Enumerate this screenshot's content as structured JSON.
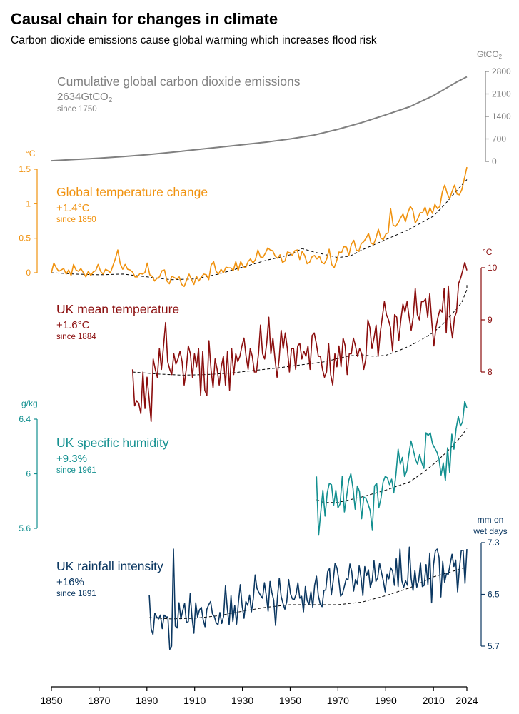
{
  "title": "Causal chain for changes in climate",
  "subtitle": "Carbon dioxide emissions cause global warming which increases flood risk",
  "chart_data": [
    {
      "type": "line",
      "id": "co2",
      "title": "Cumulative global carbon dioxide emissions",
      "value_label": "2634GtCO2",
      "since_label": "since 1750",
      "unit_label": "GtCO2",
      "color": "#808080",
      "ylim": [
        0,
        2800
      ],
      "yticks": [
        0,
        700,
        1400,
        2100,
        2800
      ],
      "axis_side": "right",
      "x": [
        1850,
        1860,
        1870,
        1880,
        1890,
        1900,
        1910,
        1920,
        1930,
        1940,
        1950,
        1960,
        1970,
        1980,
        1990,
        2000,
        2010,
        2020,
        2024
      ],
      "values": [
        20,
        60,
        100,
        150,
        210,
        280,
        360,
        440,
        520,
        600,
        700,
        820,
        1000,
        1210,
        1450,
        1700,
        2050,
        2480,
        2634
      ],
      "has_trend": false
    },
    {
      "type": "line",
      "id": "global_temp",
      "title": "Global temperature change",
      "value_label": "+1.4°C",
      "since_label": "since 1850",
      "unit_label": "°C",
      "color": "#F0920F",
      "ylim": [
        0,
        1.5
      ],
      "yticks": [
        0,
        0.5,
        1,
        1.5
      ],
      "ytick_labels": [
        "0",
        "0.5",
        "1",
        "1.5"
      ],
      "axis_side": "left",
      "start": 1850,
      "values": [
        0.0,
        0.14,
        0.07,
        0.02,
        0.04,
        0.06,
        -0.02,
        0.04,
        -0.04,
        0.12,
        0.04,
        0.02,
        0.06,
        0.0,
        -0.06,
        0.02,
        -0.04,
        0.01,
        0.03,
        0.12,
        0.02,
        -0.02,
        0.05,
        0.03,
        0.0,
        0.1,
        0.2,
        0.33,
        0.13,
        0.05,
        0.12,
        0.05,
        0.04,
        0.01,
        -0.06,
        -0.06,
        -0.01,
        -0.02,
        0.0,
        0.14,
        -0.03,
        -0.05,
        -0.12,
        -0.08,
        -0.06,
        0.03,
        0.04,
        -0.12,
        -0.16,
        -0.05,
        -0.07,
        -0.09,
        -0.06,
        -0.17,
        -0.2,
        -0.11,
        -0.02,
        -0.1,
        -0.17,
        -0.05,
        -0.12,
        -0.06,
        -0.02,
        -0.03,
        -0.1,
        0.11,
        0.16,
        0.02,
        -0.02,
        0.05,
        0.0,
        0.08,
        0.07,
        0.07,
        0.03,
        0.16,
        0.03,
        0.16,
        0.09,
        0.07,
        0.16,
        0.2,
        0.14,
        0.19,
        0.33,
        0.23,
        0.22,
        0.28,
        0.36,
        0.33,
        0.32,
        0.24,
        0.21,
        0.26,
        0.15,
        0.17,
        0.3,
        0.29,
        0.25,
        0.32,
        0.33,
        0.19,
        0.31,
        0.25,
        0.13,
        0.15,
        0.23,
        0.25,
        0.2,
        0.24,
        0.15,
        0.13,
        0.2,
        0.34,
        0.12,
        0.07,
        0.17,
        0.3,
        0.29,
        0.38,
        0.37,
        0.25,
        0.41,
        0.47,
        0.33,
        0.31,
        0.42,
        0.45,
        0.5,
        0.57,
        0.43,
        0.41,
        0.5,
        0.63,
        0.5,
        0.48,
        0.56,
        0.58,
        0.93,
        0.69,
        0.67,
        0.72,
        0.79,
        0.85,
        0.74,
        0.87,
        0.96,
        0.91,
        0.72,
        0.78,
        0.87,
        0.87,
        0.95,
        0.83,
        0.94,
        0.86,
        0.99,
        0.93,
        0.96,
        1.17,
        1.27,
        1.15,
        1.07,
        1.18,
        1.27,
        1.14,
        1.13,
        1.21,
        1.37,
        1.53
      ],
      "trend": [
        0.0,
        -0.02,
        -0.03,
        -0.02,
        -0.06,
        -0.1,
        -0.09,
        -0.02,
        0.08,
        0.18,
        0.26,
        0.35,
        0.3,
        0.26,
        0.22,
        0.24,
        0.33,
        0.48,
        0.63,
        0.82,
        1.0,
        1.2,
        1.35
      ],
      "trend_x": [
        1850,
        1860,
        1870,
        1880,
        1890,
        1900,
        1910,
        1920,
        1930,
        1940,
        1950,
        1955,
        1960,
        1965,
        1970,
        1975,
        1980,
        1990,
        2000,
        2010,
        2015,
        2020,
        2024
      ]
    },
    {
      "type": "line",
      "id": "uk_temp",
      "title": "UK mean temperature",
      "value_label": "+1.6°C",
      "since_label": "since 1884",
      "unit_label": "°C",
      "color": "#8B0E0E",
      "ylim": [
        8,
        10
      ],
      "yticks": [
        8,
        9,
        10
      ],
      "axis_side": "right",
      "start": 1884,
      "values": [
        8.05,
        7.35,
        7.45,
        7.4,
        7.2,
        8.0,
        7.3,
        7.9,
        7.5,
        7.05,
        8.25,
        8.05,
        7.9,
        8.45,
        8.05,
        8.5,
        8.95,
        8.2,
        8.05,
        7.95,
        8.35,
        8.15,
        8.25,
        8.4,
        8.2,
        7.75,
        8.05,
        8.5,
        8.35,
        7.9,
        8.35,
        8.1,
        8.45,
        7.55,
        8.4,
        7.65,
        7.55,
        8.6,
        8.05,
        7.7,
        8.25,
        8.05,
        7.75,
        8.1,
        8.3,
        7.75,
        8.4,
        7.65,
        8.45,
        7.95,
        8.35,
        8.2,
        8.3,
        8.5,
        8.65,
        8.3,
        8.05,
        8.45,
        8.3,
        8.0,
        8.0,
        8.35,
        8.9,
        8.35,
        8.25,
        8.55,
        9.05,
        8.35,
        8.65,
        8.25,
        7.9,
        8.25,
        8.8,
        8.45,
        8.75,
        8.45,
        8.0,
        8.45,
        8.45,
        8.05,
        8.5,
        8.55,
        8.25,
        8.4,
        8.3,
        8.5,
        8.05,
        8.7,
        8.75,
        8.55,
        8.3,
        8.3,
        8.05,
        7.9,
        8.0,
        8.55,
        7.95,
        7.75,
        8.35,
        8.1,
        8.5,
        8.1,
        8.65,
        8.5,
        7.95,
        8.35,
        8.35,
        8.65,
        8.5,
        8.3,
        8.45,
        8.35,
        8.05,
        8.25,
        9.0,
        8.85,
        8.45,
        8.65,
        8.9,
        8.3,
        8.75,
        9.05,
        9.35,
        9.1,
        9.0,
        8.85,
        8.4,
        9.1,
        9.05,
        8.6,
        9.0,
        9.3,
        9.15,
        9.35,
        9.05,
        8.8,
        9.05,
        9.6,
        9.1,
        9.0,
        9.35,
        9.35,
        9.4,
        9.05,
        9.5,
        8.95,
        8.5,
        8.85,
        9.05,
        9.2,
        9.15,
        9.6,
        8.75,
        9.65,
        8.95,
        8.65,
        9.05,
        9.15,
        9.7,
        9.8,
        9.95,
        10.1,
        9.95
      ],
      "trend": [
        8.0,
        7.96,
        7.94,
        7.95,
        7.98,
        8.03,
        8.08,
        8.14,
        8.2,
        8.26,
        8.31,
        8.33,
        8.3,
        8.32,
        8.4,
        8.5,
        8.62,
        8.76,
        8.92,
        9.08,
        9.22,
        9.35,
        9.47,
        9.58,
        9.67
      ],
      "trend_x": [
        1884,
        1895,
        1905,
        1915,
        1925,
        1935,
        1945,
        1955,
        1965,
        1970,
        1975,
        1980,
        1985,
        1990,
        1995,
        2000,
        2005,
        2010,
        2014,
        2017,
        2020,
        2022,
        2023,
        2024,
        2024
      ]
    },
    {
      "type": "line",
      "id": "uk_humidity",
      "title": "UK specific humidity",
      "value_label": "+9.3%",
      "since_label": "since 1961",
      "unit_label": "g/kg",
      "color": "#139090",
      "ylim": [
        5.6,
        6.4
      ],
      "yticks": [
        5.6,
        6,
        6.4
      ],
      "ytick_labels": [
        "5.6",
        "6",
        "6.4"
      ],
      "axis_side": "left",
      "start": 1961,
      "values": [
        5.98,
        5.55,
        5.72,
        5.88,
        5.69,
        5.86,
        5.93,
        5.92,
        5.77,
        5.88,
        5.75,
        5.78,
        5.98,
        5.72,
        5.83,
        5.95,
        6.0,
        5.89,
        5.74,
        5.91,
        5.87,
        5.67,
        5.83,
        5.82,
        5.78,
        5.73,
        5.59,
        5.91,
        5.93,
        5.75,
        5.82,
        5.94,
        5.98,
        5.97,
        5.92,
        5.96,
        5.86,
        6.0,
        6.18,
        6.07,
        6.12,
        5.98,
        6.02,
        6.14,
        6.24,
        6.18,
        6.11,
        6.07,
        6.14,
        6.08,
        6.04,
        6.3,
        6.28,
        6.3,
        6.22,
        6.19,
        6.16,
        6.11,
        5.99,
        6.08,
        5.95,
        6.19,
        6.01,
        6.29,
        6.18,
        6.33,
        6.42,
        6.35,
        6.38,
        6.53,
        6.48
      ],
      "trend": [
        5.81,
        5.79,
        5.79,
        5.83,
        5.88,
        5.94,
        6.0,
        6.07,
        6.15,
        6.24,
        6.33
      ],
      "trend_x": [
        1961,
        1964,
        1970,
        1980,
        1990,
        2000,
        2005,
        2010,
        2015,
        2020,
        2024
      ]
    },
    {
      "type": "line",
      "id": "uk_rain",
      "title": "UK rainfall intensity",
      "value_label": "+16%",
      "since_label": "since 1891",
      "unit_label": "mm on wet days",
      "color": "#0B3761",
      "ylim": [
        5.7,
        7.3
      ],
      "yticks": [
        5.7,
        6.5,
        7.3
      ],
      "ytick_labels": [
        "5.7",
        "6.5",
        "7.3"
      ],
      "axis_side": "right",
      "start": 1891,
      "values": [
        6.49,
        5.97,
        5.88,
        6.21,
        6.15,
        6.12,
        6.18,
        5.97,
        6.18,
        6.15,
        6.15,
        5.65,
        5.7,
        7.2,
        6.01,
        5.98,
        6.37,
        6.12,
        6.25,
        6.36,
        6.07,
        6.08,
        6.51,
        6.14,
        5.9,
        6.37,
        6.15,
        6.26,
        6.3,
        6.11,
        6.0,
        6.27,
        6.34,
        6.39,
        6.2,
        6.16,
        6.06,
        6.03,
        6.22,
        6.05,
        6.16,
        6.63,
        6.28,
        6.03,
        6.48,
        6.08,
        6.33,
        6.04,
        6.38,
        6.65,
        6.32,
        6.13,
        6.39,
        6.33,
        6.49,
        6.23,
        6.43,
        6.8,
        6.59,
        6.53,
        6.48,
        6.44,
        6.68,
        6.48,
        6.24,
        6.7,
        6.53,
        6.41,
        6.02,
        6.45,
        6.75,
        6.47,
        6.36,
        6.27,
        6.39,
        6.73,
        6.51,
        6.43,
        6.42,
        6.5,
        6.68,
        6.44,
        6.47,
        6.23,
        6.62,
        6.4,
        6.35,
        6.54,
        6.3,
        6.64,
        6.78,
        6.48,
        6.35,
        6.31,
        6.56,
        6.57,
        6.85,
        6.9,
        6.49,
        6.71,
        6.98,
        6.91,
        6.73,
        6.47,
        6.51,
        6.62,
        6.74,
        6.73,
        6.97,
        6.85,
        6.55,
        6.73,
        6.66,
        6.94,
        6.76,
        6.48,
        6.93,
        6.79,
        6.88,
        6.61,
        6.71,
        7.02,
        6.7,
        6.76,
        6.98,
        6.84,
        6.71,
        6.54,
        6.81,
        6.74,
        6.91,
        6.86,
        6.64,
        7.05,
        6.62,
        7.2,
        6.71,
        6.61,
        6.71,
        6.64,
        7.23,
        6.74,
        6.56,
        6.87,
        6.61,
        6.71,
        6.99,
        6.62,
        6.64,
        6.96,
        6.65,
        7.14,
        6.37,
        6.95,
        7.17,
        7.2,
        7.07,
        6.46,
        7.01,
        6.69,
        6.82,
        6.81,
        6.97,
        7.12,
        6.93,
        7.03,
        6.54,
        6.91,
        7.18,
        7.18,
        6.67,
        7.2
      ],
      "trend": [
        6.14,
        6.12,
        6.13,
        6.17,
        6.24,
        6.3,
        6.34,
        6.34,
        6.34,
        6.38,
        6.48,
        6.6,
        6.77,
        6.92
      ],
      "trend_x": [
        1891,
        1900,
        1910,
        1920,
        1930,
        1940,
        1950,
        1960,
        1970,
        1980,
        1990,
        2000,
        2010,
        2024
      ]
    }
  ],
  "x_axis": {
    "ticks": [
      1850,
      1870,
      1890,
      1910,
      1930,
      1950,
      1970,
      1990,
      2010,
      2024
    ],
    "range": [
      1850,
      2024
    ]
  }
}
